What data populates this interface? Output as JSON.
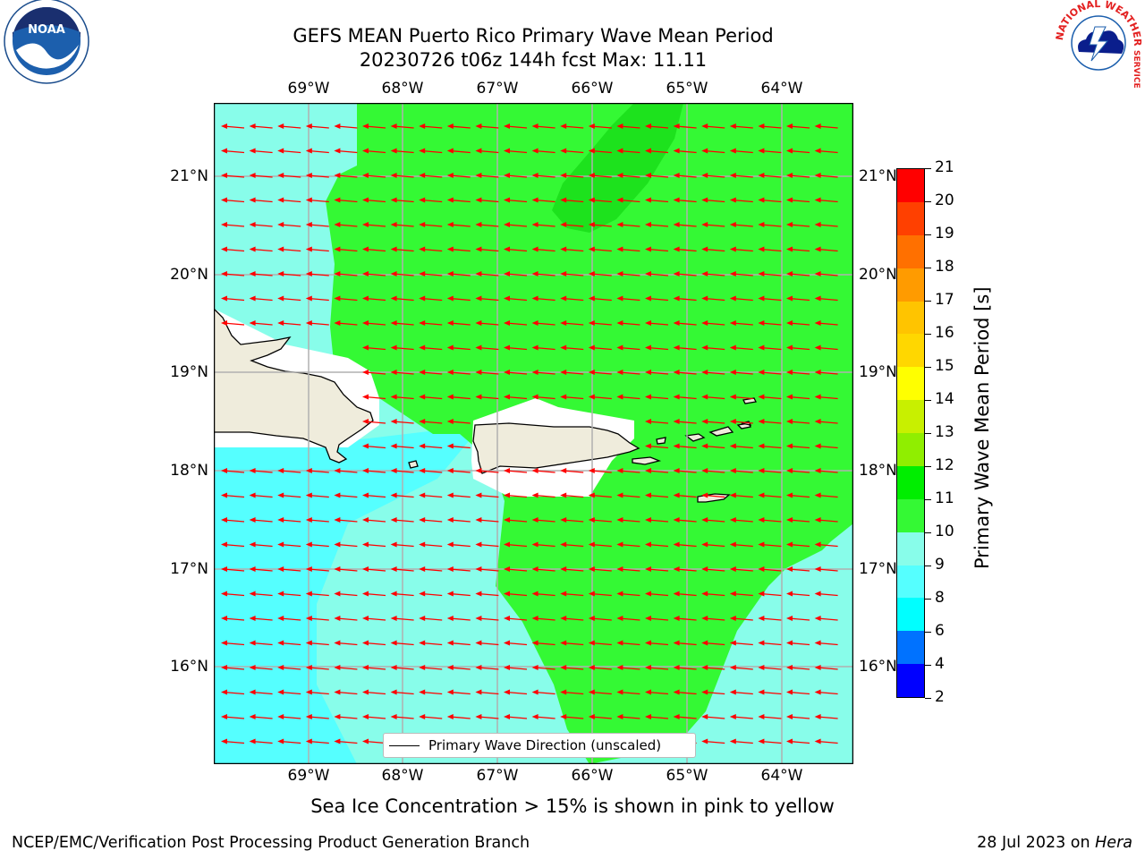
{
  "title": {
    "line1": "GEFS MEAN Puerto Rico Primary Wave Mean Period",
    "line2": "20230726 t06z 144h fcst   Max: 11.11"
  },
  "logos": {
    "left_text": "NOAA",
    "right_text_top": "NATIONAL WEATHER",
    "right_text_side": "SERVICE"
  },
  "axes": {
    "lon_labels": [
      "69°W",
      "68°W",
      "67°W",
      "66°W",
      "65°W",
      "64°W"
    ],
    "lat_labels": [
      "21°N",
      "20°N",
      "19°N",
      "18°N",
      "17°N",
      "16°N"
    ]
  },
  "legend": {
    "label": "Primary Wave Direction (unscaled)"
  },
  "colorbar": {
    "title": "Primary Wave Mean Period [s]",
    "ticks": [
      "2",
      "4",
      "6",
      "8",
      "9",
      "10",
      "11",
      "12",
      "13",
      "14",
      "15",
      "16",
      "17",
      "18",
      "19",
      "20",
      "21"
    ],
    "colors": [
      "#0000ff",
      "#0072ff",
      "#00ffff",
      "#55ffff",
      "#88fdea",
      "#34f934",
      "#00ee00",
      "#90ee00",
      "#c8f000",
      "#ffff00",
      "#ffd700",
      "#ffc400",
      "#ff9b00",
      "#ff7000",
      "#ff4000",
      "#ff0000"
    ]
  },
  "note": "Sea Ice Concentration > 15% is shown in pink to yellow",
  "footer": {
    "left": "NCEP/EMC/Verification Post Processing Product Generation Branch",
    "right_prefix": "28 Jul 2023 on ",
    "right_host": "Hera"
  },
  "map_colors": {
    "sea_light": "#88fdea",
    "sea_mid": "#55ffff",
    "sea_cyan": "#00ffff",
    "sea_green": "#34f934",
    "sea_green_dark": "#1de21d",
    "land": "#efecdc",
    "arrow": "#ff0000",
    "grid": "#b0b0b0"
  }
}
